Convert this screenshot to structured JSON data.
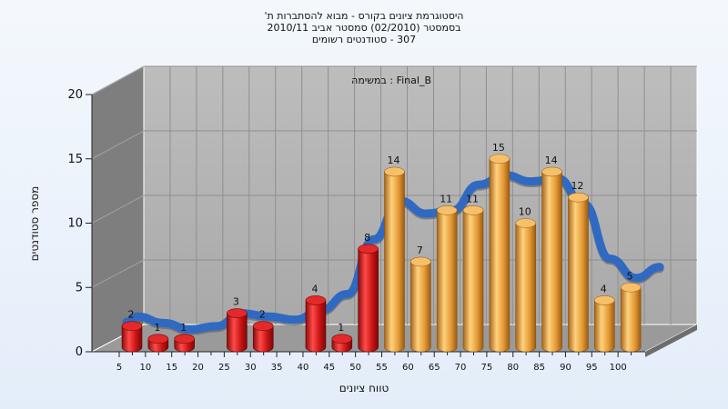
{
  "chart_data": {
    "type": "bar",
    "title_lines": [
      "היסטוגרמת ציונים בקורס - מבוא להסתברות ת'",
      "בסמסטר  (02/2010)  סמסטר אביב 2010/11",
      "307 - סטודנטים רשומים"
    ],
    "subtitle": "במשימה : Final_B",
    "xlabel": "טווח ציונים",
    "ylabel": "מספר סטודנטים",
    "x": [
      5,
      10,
      15,
      20,
      25,
      30,
      35,
      40,
      45,
      50,
      55,
      60,
      65,
      70,
      75,
      80,
      85,
      90,
      95,
      100
    ],
    "yticks": [
      0,
      5,
      10,
      15,
      20
    ],
    "ylim": [
      0,
      20
    ],
    "grid": true,
    "series": [
      {
        "values": [
          2,
          1,
          1,
          0,
          3,
          2,
          0,
          4,
          1,
          8,
          14,
          7,
          11,
          11,
          15,
          10,
          14,
          12,
          4,
          5
        ],
        "colors": [
          "#d61a1a",
          "#d61a1a",
          "#d61a1a",
          "#d61a1a",
          "#d61a1a",
          "#d61a1a",
          "#d61a1a",
          "#d61a1a",
          "#d61a1a",
          "#d61a1a",
          "#f0a030",
          "#f0a030",
          "#f0a030",
          "#f0a030",
          "#f0a030",
          "#f0a030",
          "#f0a030",
          "#f0a030",
          "#f0a030",
          "#f0a030"
        ]
      }
    ],
    "curve_color": "#2f69c2",
    "wall_color": "#b5b5b5"
  }
}
